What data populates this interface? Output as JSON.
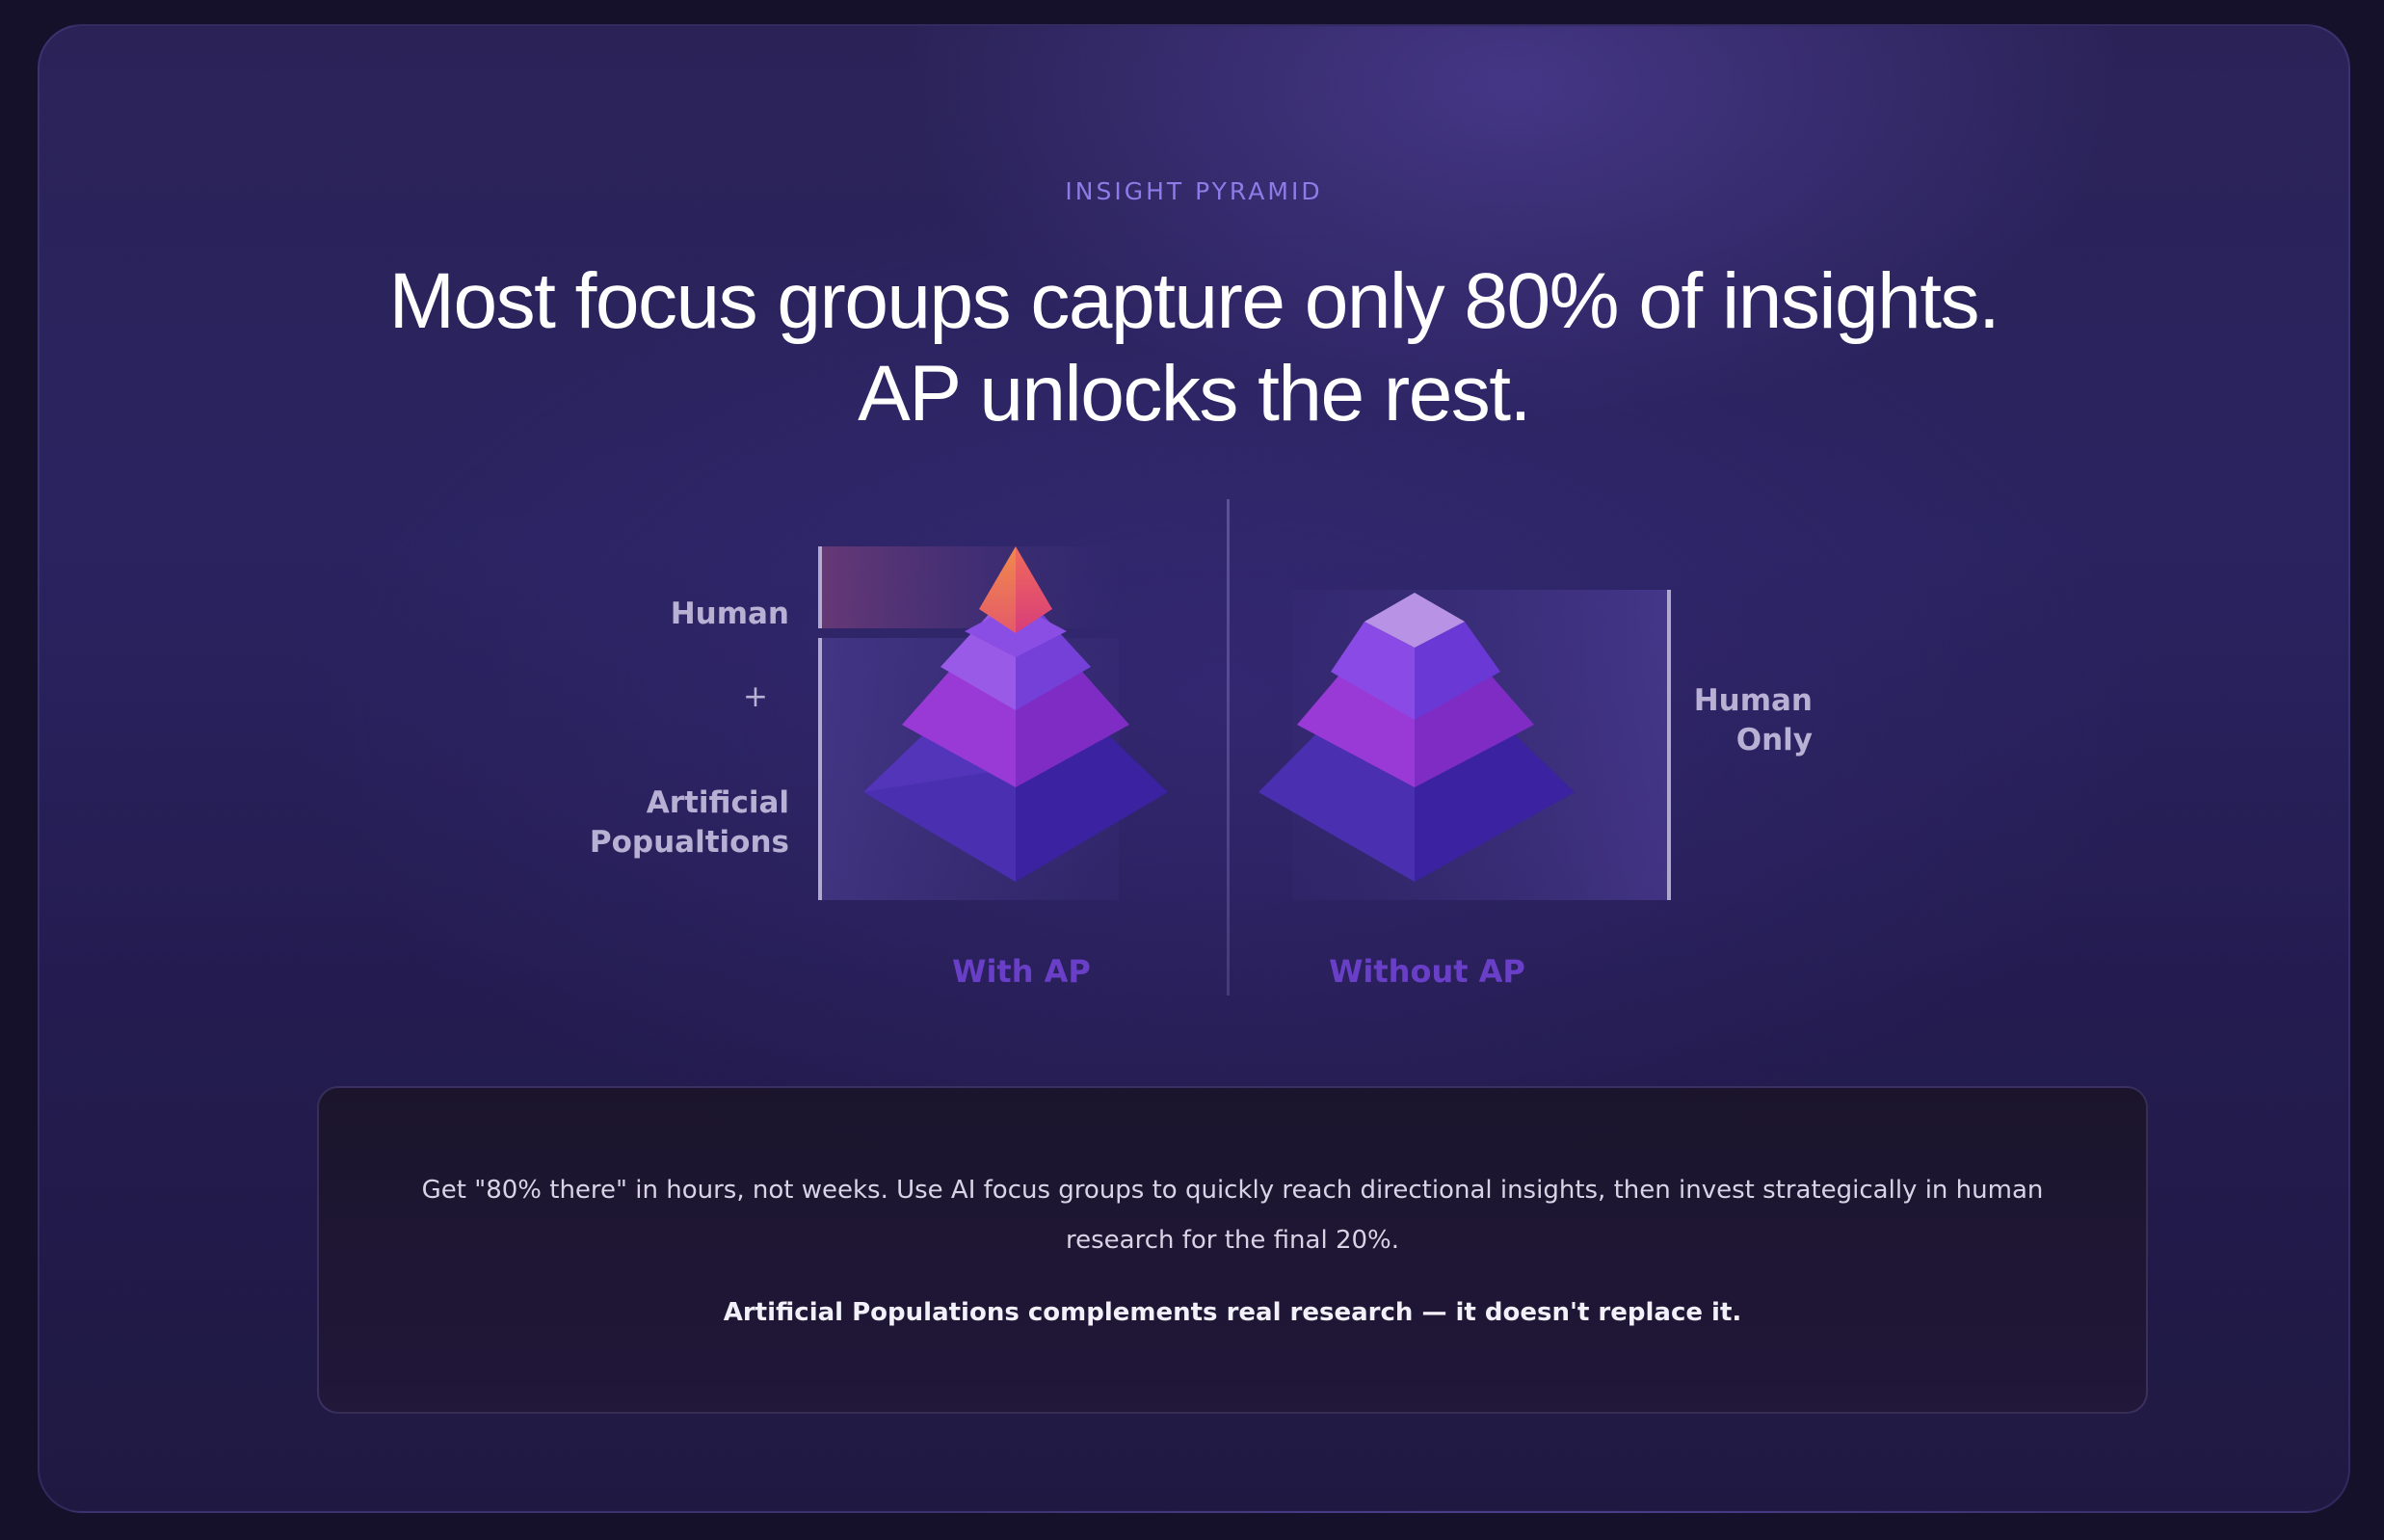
{
  "section": {
    "eyebrow": "INSIGHT PYRAMID",
    "headline_line1": "Most focus groups capture only 80% of insights.",
    "headline_line2": "AP unlocks the rest."
  },
  "with_ap": {
    "label_top": "Human",
    "label_plus": "+",
    "label_bottom_line1": "Artificial",
    "label_bottom_line2": "Popualtions",
    "caption": "With AP",
    "apex_color": "#f06a5a"
  },
  "without_ap": {
    "label_line1": "Human",
    "label_line2": "Only",
    "caption": "Without AP"
  },
  "note": {
    "body": "Get \"80% there\" in hours, not weeks. Use AI focus groups to quickly reach directional insights, then invest strategically in human research for the final 20%.",
    "emphasis": "Artificial Populations complements real research — it doesn't replace it."
  },
  "colors": {
    "accent": "#8f7be8",
    "caption": "#6a3fc8",
    "background": "#2a2360"
  }
}
